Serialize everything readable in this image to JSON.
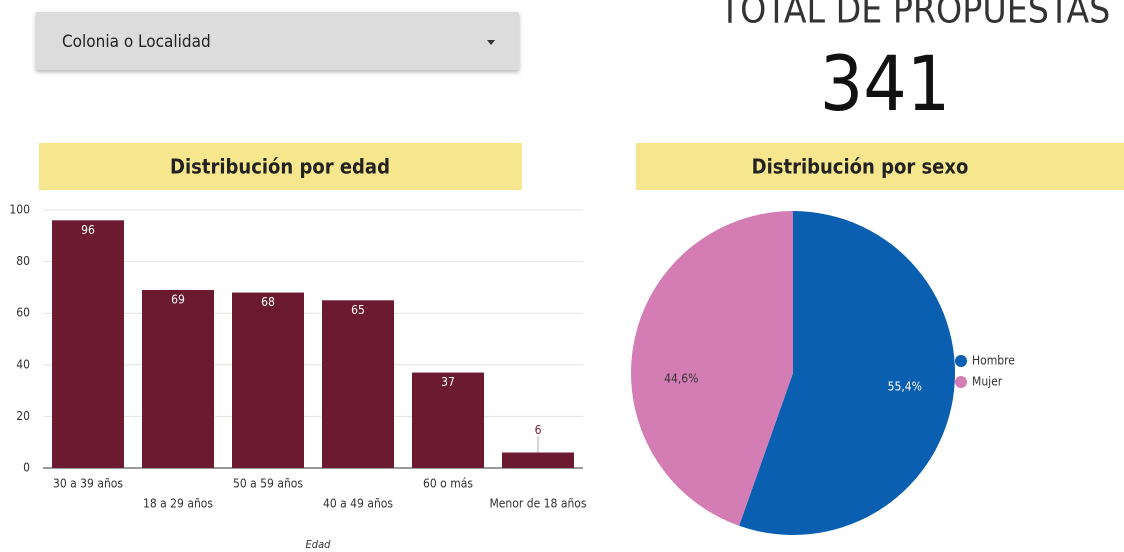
{
  "dropdown": {
    "label": "Colonia o Localidad"
  },
  "kpi": {
    "title": "TOTAL DE PROPUESTAS",
    "value": 341
  },
  "chart_data": [
    {
      "type": "bar",
      "title": "Distribución por edad",
      "x_label": "Edad",
      "categories": [
        "30 a 39 años",
        "18 a 29 años",
        "50 a 59 años",
        "40 a 49 años",
        "60 o más",
        "Menor de 18 años"
      ],
      "values": [
        96,
        69,
        68,
        65,
        37,
        6
      ],
      "color": "#6b1a30",
      "ylim": [
        0,
        100
      ],
      "yticks": [
        0,
        20,
        40,
        60,
        80,
        100
      ],
      "grid": true
    },
    {
      "type": "pie",
      "title": "Distribución por sexo",
      "categories": [
        "Hombre",
        "Mujer"
      ],
      "values": [
        55.4,
        44.6
      ],
      "value_labels": [
        "55,4%",
        "44,6%"
      ],
      "colors": [
        "#0b5fb0",
        "#d47db5"
      ],
      "legend": "right"
    }
  ]
}
